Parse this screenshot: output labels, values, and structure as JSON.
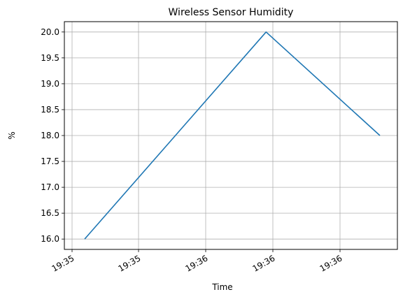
{
  "chart_data": {
    "type": "line",
    "title": "Wireless Sensor Humidity",
    "xlabel": "Time",
    "ylabel": "%",
    "grid": true,
    "legend": "none",
    "x_ticks": [
      "19:35",
      "19:35",
      "19:36",
      "19:36",
      "19:36"
    ],
    "y_ticks": [
      "16.0",
      "16.5",
      "17.0",
      "17.5",
      "18.0",
      "18.5",
      "19.0",
      "19.5",
      "20.0"
    ],
    "ylim": [
      15.8,
      20.2
    ],
    "series": [
      {
        "color": "#1f77b4",
        "x": [
          "19:35:45",
          "19:36:36",
          "19:37:08"
        ],
        "values": [
          16.0,
          20.0,
          18.0
        ]
      }
    ]
  }
}
